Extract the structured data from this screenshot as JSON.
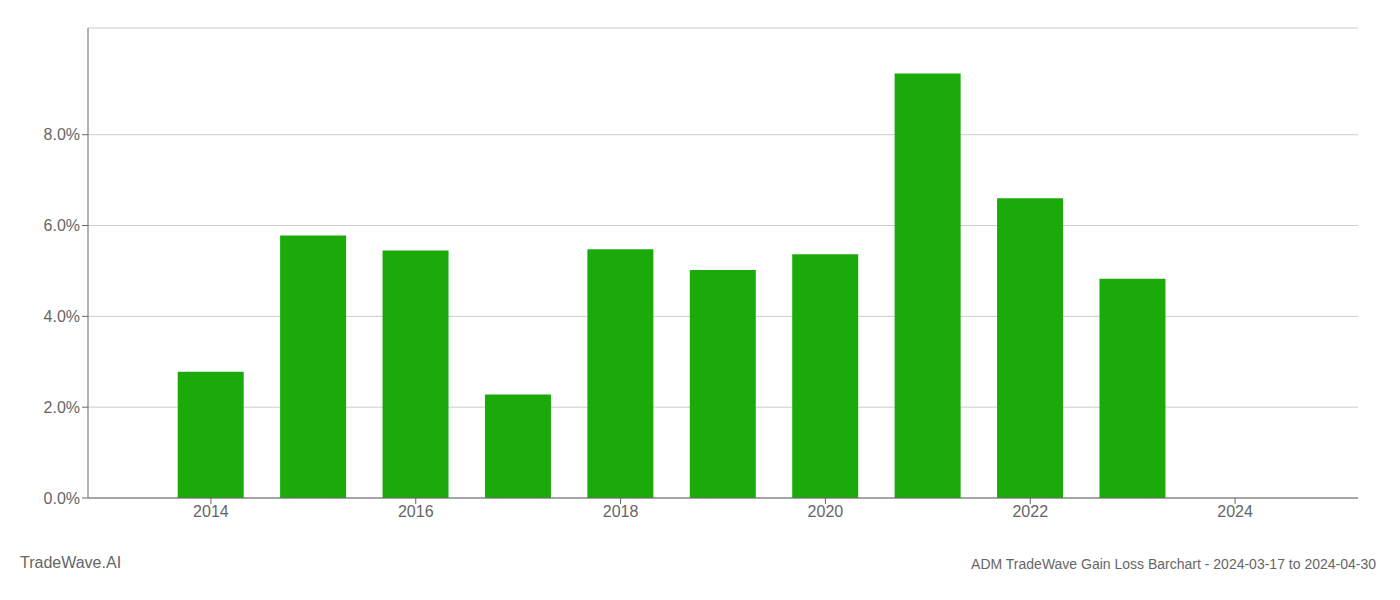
{
  "chart_data": {
    "type": "bar",
    "title": "ADM TradeWave Gain Loss Barchart - 2024-03-17 to 2024-04-30",
    "annotations": [
      "TradeWave.AI"
    ],
    "x": [
      2014,
      2015,
      2016,
      2017,
      2018,
      2019,
      2020,
      2021,
      2022,
      2023
    ],
    "values": [
      0.0278,
      0.0578,
      0.0545,
      0.0228,
      0.0548,
      0.0502,
      0.0537,
      0.0935,
      0.066,
      0.0483
    ],
    "color": "#1aab0a",
    "xlim": [
      2012.8,
      2025.2
    ],
    "xticks": [
      2014,
      2016,
      2018,
      2020,
      2022,
      2024
    ],
    "ylim": [
      0,
      0.1035
    ],
    "yticks": [
      {
        "value": 0.0,
        "label": "0.0%"
      },
      {
        "value": 0.02,
        "label": "2.0%"
      },
      {
        "value": 0.04,
        "label": "4.0%"
      },
      {
        "value": 0.06,
        "label": "6.0%"
      },
      {
        "value": 0.08,
        "label": "8.0%"
      }
    ],
    "grid": "y"
  }
}
